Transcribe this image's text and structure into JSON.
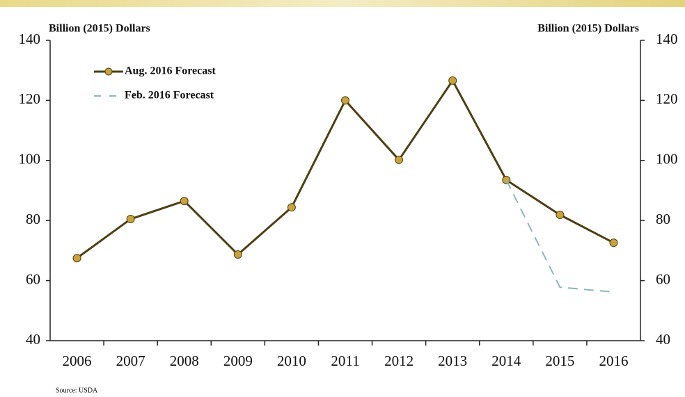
{
  "chart_data": {
    "type": "line",
    "y_label": "Billion (2015) Dollars",
    "y2_label": "Billion (2015) Dollars",
    "source": "Source: USDA",
    "categories": [
      "2006",
      "2007",
      "2008",
      "2009",
      "2010",
      "2011",
      "2012",
      "2013",
      "2014",
      "2015",
      "2016"
    ],
    "series": [
      {
        "name": "Aug. 2016 Forecast",
        "color": "#4e3f14",
        "marker_color": "#c9a23c",
        "markers": true,
        "dash": false,
        "values": [
          67.5,
          80.5,
          86.5,
          68.7,
          84.4,
          120,
          100.2,
          126.6,
          93.5,
          81.9,
          72.6
        ]
      },
      {
        "name": "Feb. 2016 Forecast",
        "color": "#8fb6be",
        "markers": false,
        "dash": true,
        "values": [
          null,
          null,
          null,
          null,
          null,
          null,
          null,
          null,
          93.5,
          57.8,
          56.2
        ]
      }
    ],
    "ylim": [
      40,
      140
    ],
    "yticks": [
      40,
      60,
      80,
      100,
      120,
      140
    ],
    "y2lim": [
      40,
      140
    ],
    "y2ticks": [
      40,
      60,
      80,
      100,
      120,
      140
    ],
    "legend": "upper left"
  }
}
